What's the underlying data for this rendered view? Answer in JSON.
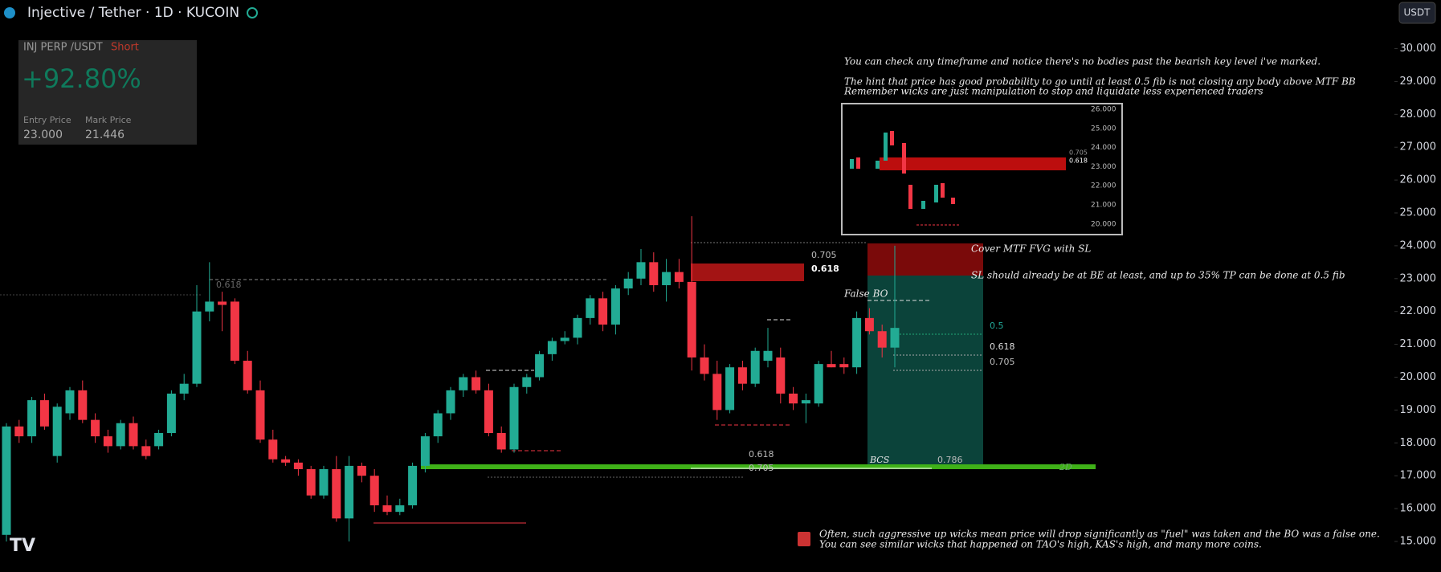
{
  "header": {
    "title": "Injective / Tether · 1D · KUCOIN",
    "currency": "USDT"
  },
  "position": {
    "symbol": "INJ PERP /USDT",
    "side": "Short",
    "pnl": "+92.80%",
    "entry_label": "Entry Price",
    "entry": "23.000",
    "mark_label": "Mark Price",
    "mark": "21.446"
  },
  "chart_data": {
    "type": "candlestick",
    "open": [
      15.2,
      18.5,
      18.2,
      19.3,
      17.6,
      18.9,
      19.6,
      18.7,
      18.2,
      17.9,
      18.6,
      17.9,
      17.9,
      18.3,
      19.5,
      19.8,
      22.0,
      22.3,
      22.3,
      20.5,
      19.6,
      18.1,
      17.5,
      17.4,
      17.2,
      16.4,
      17.2,
      15.7,
      17.3,
      17.0,
      16.1,
      15.9,
      16.1,
      17.3,
      18.2,
      18.9,
      19.6,
      20.0,
      19.6,
      18.3,
      17.8,
      19.7,
      20.0,
      20.7,
      21.1,
      21.2,
      21.8,
      22.4,
      21.6,
      22.7,
      23.0,
      23.5,
      22.8,
      23.2,
      22.9,
      20.6,
      20.1,
      19.0,
      20.3,
      19.8,
      20.5,
      20.6,
      19.5,
      19.2,
      19.2,
      20.4,
      20.4,
      20.3,
      21.8,
      21.4,
      20.9
    ],
    "high": [
      18.6,
      18.7,
      19.4,
      19.5,
      19.2,
      19.7,
      19.9,
      18.9,
      18.4,
      18.7,
      18.8,
      18.1,
      18.4,
      19.6,
      20.1,
      22.8,
      23.5,
      22.6,
      22.4,
      20.8,
      19.9,
      18.4,
      17.6,
      17.5,
      17.3,
      17.3,
      17.6,
      17.6,
      17.4,
      17.2,
      16.4,
      16.3,
      17.4,
      18.3,
      19.0,
      19.7,
      20.1,
      20.2,
      19.8,
      18.5,
      19.8,
      20.1,
      20.8,
      21.2,
      21.4,
      21.9,
      22.5,
      22.6,
      22.8,
      23.2,
      23.9,
      23.8,
      23.6,
      23.6,
      24.9,
      21.0,
      20.5,
      20.4,
      20.5,
      20.9,
      21.5,
      20.9,
      19.7,
      19.5,
      20.5,
      20.8,
      20.6,
      22.0,
      22.1,
      21.6,
      24.0
    ],
    "low": [
      15.0,
      18.0,
      18.0,
      18.4,
      17.4,
      18.7,
      18.6,
      18.0,
      17.7,
      17.8,
      17.8,
      17.5,
      17.8,
      18.2,
      19.3,
      19.7,
      21.7,
      21.4,
      20.4,
      19.5,
      18.0,
      17.4,
      17.3,
      17.0,
      16.3,
      16.3,
      15.6,
      15.0,
      16.8,
      15.9,
      15.8,
      15.8,
      16.0,
      17.1,
      18.0,
      18.7,
      19.4,
      19.5,
      18.2,
      17.7,
      17.7,
      19.5,
      19.9,
      20.5,
      21.0,
      21.0,
      21.6,
      21.4,
      21.3,
      22.5,
      22.8,
      22.6,
      22.3,
      22.7,
      20.2,
      19.9,
      18.7,
      18.9,
      19.6,
      19.7,
      20.3,
      19.2,
      19.0,
      18.6,
      19.1,
      20.3,
      20.1,
      20.1,
      21.3,
      20.6,
      20.3
    ],
    "close": [
      18.5,
      18.2,
      19.3,
      18.5,
      19.1,
      19.6,
      18.7,
      18.2,
      17.9,
      18.6,
      17.9,
      17.6,
      18.3,
      19.5,
      19.8,
      22.0,
      22.3,
      22.2,
      20.5,
      19.6,
      18.1,
      17.5,
      17.4,
      17.2,
      16.4,
      17.2,
      15.7,
      17.3,
      17.0,
      16.1,
      15.9,
      16.1,
      17.3,
      18.2,
      18.9,
      19.6,
      20.0,
      19.6,
      18.3,
      17.8,
      19.7,
      20.0,
      20.7,
      21.1,
      21.2,
      21.8,
      22.4,
      21.6,
      22.7,
      23.0,
      23.5,
      22.8,
      23.2,
      22.9,
      20.6,
      20.1,
      19.0,
      20.3,
      19.8,
      20.8,
      20.8,
      19.5,
      19.2,
      19.3,
      20.4,
      20.3,
      20.3,
      21.8,
      21.4,
      20.9,
      21.5
    ],
    "up_color": "#22ab94",
    "down_color": "#f23645",
    "ylim": [
      14.07,
      31.48
    ],
    "yticks": [
      {
        "value": 15,
        "label": "15.000"
      },
      {
        "value": 16,
        "label": "16.000"
      },
      {
        "value": 17,
        "label": "17.000"
      },
      {
        "value": 18,
        "label": "18.000"
      },
      {
        "value": 19,
        "label": "19.000"
      },
      {
        "value": 20,
        "label": "20.000"
      },
      {
        "value": 21,
        "label": "21.000"
      },
      {
        "value": 22,
        "label": "22.000"
      },
      {
        "value": 23,
        "label": "23.000"
      },
      {
        "value": 24,
        "label": "24.000"
      },
      {
        "value": 25,
        "label": "25.000"
      },
      {
        "value": 26,
        "label": "26.000"
      },
      {
        "value": 27,
        "label": "27.000"
      },
      {
        "value": 28,
        "label": "28.000"
      },
      {
        "value": 29,
        "label": "29.000"
      },
      {
        "value": 30,
        "label": "30.000"
      }
    ]
  },
  "annotations": {
    "note_top": [
      "You can check any timeframe and notice there's no bodies past the bearish key level i've marked.",
      "The hint that price has good probability to go until at least 0.5 fib is not closing any body above MTF BB",
      "Remember wicks are just manipulation to stop and liquidate less experienced traders"
    ],
    "cover": "Cover MTF FVG with SL",
    "sl_note": "SL should already be at BE at least, and up to 35% TP can be done at 0.5 fib",
    "false_bo": "False BO",
    "fvg_705": "0.705",
    "fvg_618": "0.618",
    "left_618": "0.618",
    "fib_5": "0.5",
    "fib_618": "0.618",
    "fib_705": "0.705",
    "low_618": "0.618",
    "low_705": "0.705",
    "bcs": "BCS",
    "fib_786": "0.786",
    "tf": "2D",
    "note_bottom": [
      "Often, such aggressive up wicks mean price will drop significantly as \"fuel\" was taken and the BO was a false one.",
      "You can see similar wicks that happened on TAO's high, KAS's high, and many more coins."
    ]
  },
  "inset": {
    "yticks": [
      "26.000",
      "25.000",
      "24.000",
      "23.000",
      "22.000",
      "21.000",
      "20.000"
    ],
    "level_705": "0.705",
    "level_618": "0.618"
  }
}
